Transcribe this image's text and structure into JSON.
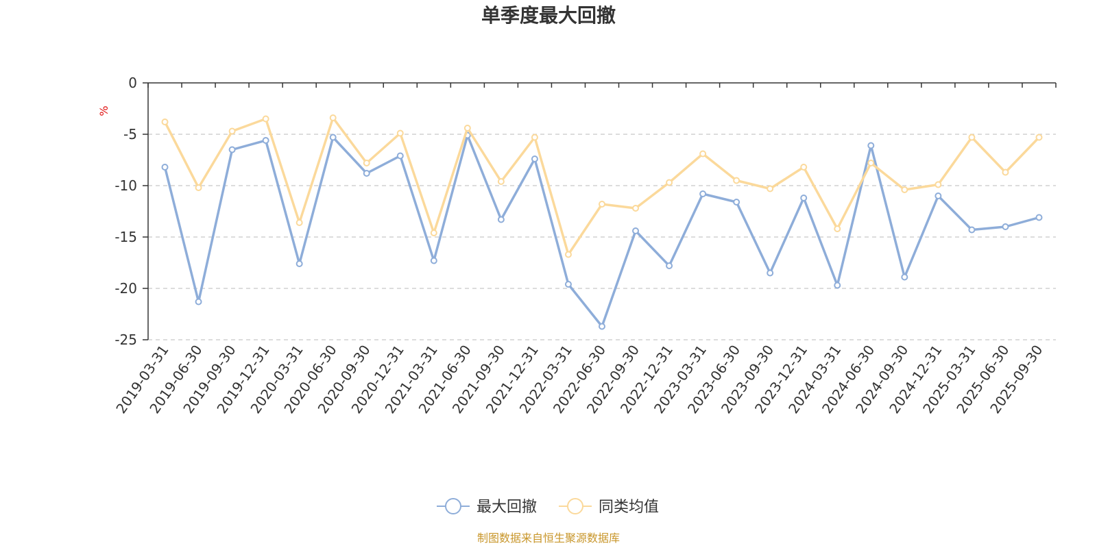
{
  "chart_data": {
    "type": "line",
    "title": "单季度最大回撤",
    "ylabel": "%",
    "ylim": [
      -25,
      0
    ],
    "yticks": [
      0,
      -5,
      -10,
      -15,
      -20,
      -25
    ],
    "grid": true,
    "legend_position": "bottom-center",
    "categories": [
      "2019-03-31",
      "2019-06-30",
      "2019-09-30",
      "2019-12-31",
      "2020-03-31",
      "2020-06-30",
      "2020-09-30",
      "2020-12-31",
      "2021-03-31",
      "2021-06-30",
      "2021-09-30",
      "2021-12-31",
      "2022-03-31",
      "2022-06-30",
      "2022-09-30",
      "2022-12-31",
      "2023-03-31",
      "2023-06-30",
      "2023-09-30",
      "2023-12-31",
      "2024-03-31",
      "2024-06-30",
      "2024-09-30",
      "2024-12-31",
      "2025-03-31",
      "2025-06-30",
      "2025-09-30"
    ],
    "series": [
      {
        "name": "最大回撤",
        "color": "#8eadd9",
        "values": [
          -8.2,
          -21.3,
          -6.5,
          -5.6,
          -17.6,
          -5.3,
          -8.8,
          -7.1,
          -17.3,
          -5.1,
          -13.3,
          -7.4,
          -19.6,
          -23.7,
          -14.4,
          -17.8,
          -10.8,
          -11.6,
          -18.5,
          -11.2,
          -19.7,
          -6.1,
          -18.9,
          -11.0,
          -14.3,
          -14.0,
          -13.1
        ]
      },
      {
        "name": "同类均值",
        "color": "#fbd99b",
        "values": [
          -3.8,
          -10.2,
          -4.7,
          -3.5,
          -13.6,
          -3.4,
          -7.8,
          -4.9,
          -14.6,
          -4.4,
          -9.6,
          -5.3,
          -16.7,
          -11.8,
          -12.2,
          -9.7,
          -6.9,
          -9.5,
          -10.3,
          -8.2,
          -14.2,
          -7.8,
          -10.4,
          -9.9,
          -5.3,
          -8.7,
          -5.3
        ]
      }
    ]
  },
  "footer": {
    "source": "制图数据来自恒生聚源数据库",
    "source_color": "#c8962a"
  }
}
